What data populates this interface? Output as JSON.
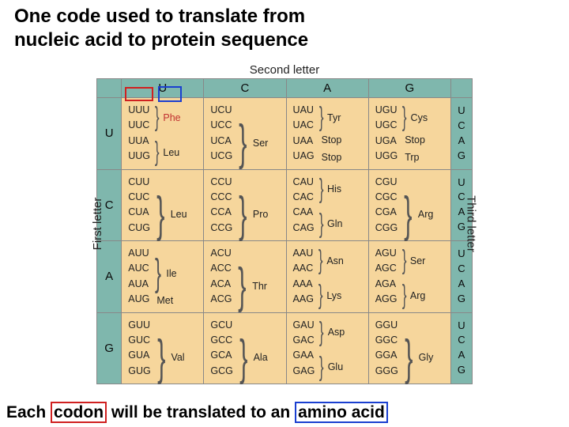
{
  "title_line1": "One code used to translate from",
  "title_line2": "nucleic acid to protein sequence",
  "caption_pre": "Each ",
  "caption_codon": "codon",
  "caption_mid": " will be translated to an ",
  "caption_aa": "amino acid",
  "axis_top": "Second letter",
  "axis_left": "First letter",
  "axis_right": "Third letter",
  "letters": [
    "U",
    "C",
    "A",
    "G"
  ],
  "right_letters": [
    "U",
    "C",
    "A",
    "G"
  ],
  "colors": {
    "header_bg": "#7fb7ad",
    "cell_bg": "#f6d69c",
    "border": "#888888",
    "red_highlight": "#d02020",
    "blue_highlight": "#1a3fd0",
    "phe_color": "#c03030"
  },
  "table": [
    [
      {
        "codons": [
          "UUU",
          "UUC",
          "UUA",
          "UUG"
        ],
        "aa": [
          {
            "name": "Phe",
            "span": [
              0,
              1
            ],
            "color": "#c03030"
          },
          {
            "name": "Leu",
            "span": [
              2,
              3
            ]
          }
        ]
      },
      {
        "codons": [
          "UCU",
          "UCC",
          "UCA",
          "UCG"
        ],
        "aa": [
          {
            "name": "Ser",
            "span": [
              0,
              3
            ]
          }
        ]
      },
      {
        "codons": [
          "UAU",
          "UAC",
          "UAA",
          "UAG"
        ],
        "aa": [
          {
            "name": "Tyr",
            "span": [
              0,
              1
            ]
          },
          {
            "name": "Stop",
            "span": [
              2,
              2
            ]
          },
          {
            "name": "Stop",
            "span": [
              3,
              3
            ]
          }
        ]
      },
      {
        "codons": [
          "UGU",
          "UGC",
          "UGA",
          "UGG"
        ],
        "aa": [
          {
            "name": "Cys",
            "span": [
              0,
              1
            ]
          },
          {
            "name": "Stop",
            "span": [
              2,
              2
            ]
          },
          {
            "name": "Trp",
            "span": [
              3,
              3
            ]
          }
        ]
      }
    ],
    [
      {
        "codons": [
          "CUU",
          "CUC",
          "CUA",
          "CUG"
        ],
        "aa": [
          {
            "name": "Leu",
            "span": [
              0,
              3
            ]
          }
        ]
      },
      {
        "codons": [
          "CCU",
          "CCC",
          "CCA",
          "CCG"
        ],
        "aa": [
          {
            "name": "Pro",
            "span": [
              0,
              3
            ]
          }
        ]
      },
      {
        "codons": [
          "CAU",
          "CAC",
          "CAA",
          "CAG"
        ],
        "aa": [
          {
            "name": "His",
            "span": [
              0,
              1
            ]
          },
          {
            "name": "Gln",
            "span": [
              2,
              3
            ]
          }
        ]
      },
      {
        "codons": [
          "CGU",
          "CGC",
          "CGA",
          "CGG"
        ],
        "aa": [
          {
            "name": "Arg",
            "span": [
              0,
              3
            ]
          }
        ]
      }
    ],
    [
      {
        "codons": [
          "AUU",
          "AUC",
          "AUA",
          "AUG"
        ],
        "aa": [
          {
            "name": "Ile",
            "span": [
              0,
              2
            ]
          },
          {
            "name": "Met",
            "span": [
              3,
              3
            ]
          }
        ]
      },
      {
        "codons": [
          "ACU",
          "ACC",
          "ACA",
          "ACG"
        ],
        "aa": [
          {
            "name": "Thr",
            "span": [
              0,
              3
            ]
          }
        ]
      },
      {
        "codons": [
          "AAU",
          "AAC",
          "AAA",
          "AAG"
        ],
        "aa": [
          {
            "name": "Asn",
            "span": [
              0,
              1
            ]
          },
          {
            "name": "Lys",
            "span": [
              2,
              3
            ]
          }
        ]
      },
      {
        "codons": [
          "AGU",
          "AGC",
          "AGA",
          "AGG"
        ],
        "aa": [
          {
            "name": "Ser",
            "span": [
              0,
              1
            ]
          },
          {
            "name": "Arg",
            "span": [
              2,
              3
            ]
          }
        ]
      }
    ],
    [
      {
        "codons": [
          "GUU",
          "GUC",
          "GUA",
          "GUG"
        ],
        "aa": [
          {
            "name": "Val",
            "span": [
              0,
              3
            ]
          }
        ]
      },
      {
        "codons": [
          "GCU",
          "GCC",
          "GCA",
          "GCG"
        ],
        "aa": [
          {
            "name": "Ala",
            "span": [
              0,
              3
            ]
          }
        ]
      },
      {
        "codons": [
          "GAU",
          "GAC",
          "GAA",
          "GAG"
        ],
        "aa": [
          {
            "name": "Asp",
            "span": [
              0,
              1
            ]
          },
          {
            "name": "Glu",
            "span": [
              2,
              3
            ]
          }
        ]
      },
      {
        "codons": [
          "GGU",
          "GGC",
          "GGA",
          "GGG"
        ],
        "aa": [
          {
            "name": "Gly",
            "span": [
              0,
              3
            ]
          }
        ]
      }
    ]
  ]
}
